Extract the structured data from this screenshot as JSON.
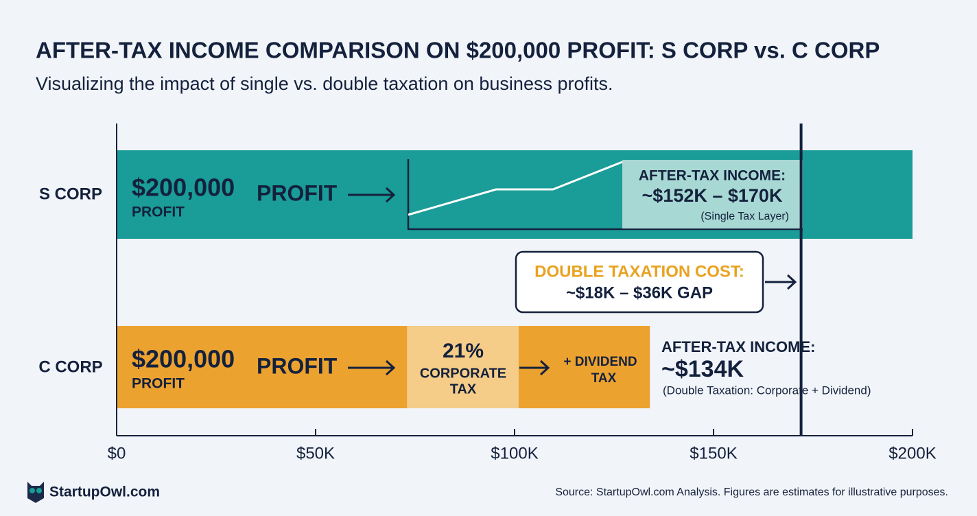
{
  "chart_data": {
    "type": "stacked_bar_horizontal",
    "title": "AFTER-TAX INCOME COMPARISON ON $200,000 PROFIT: S CORP vs. C CORP",
    "subtitle": "Visualizing the impact of single vs. double taxation on business profits.",
    "xlim": [
      0,
      200000
    ],
    "xticks": [
      {
        "value": 0,
        "label": "$0"
      },
      {
        "value": 50000,
        "label": "$50K"
      },
      {
        "value": 100000,
        "label": "$100K"
      },
      {
        "value": 150000,
        "label": "$150K"
      },
      {
        "value": 200000,
        "label": "$200K"
      }
    ],
    "bars": [
      {
        "category": "S CORP",
        "segments": [
          {
            "value": 200000,
            "color": "#1a9c98"
          }
        ],
        "labels": {
          "amount": "$200,000",
          "amount_sub": "PROFIT",
          "profit": "PROFIT"
        },
        "annotation": {
          "heading": "AFTER-TAX INCOME:",
          "value": "~$152K – $170K",
          "note": "(Single Tax Layer)"
        }
      },
      {
        "category": "C CORP",
        "segments": [
          {
            "value": 73000,
            "color": "#eca22f"
          },
          {
            "value": 28000,
            "color": "#f5cd88"
          },
          {
            "value": 33000,
            "color": "#eca22f"
          }
        ],
        "labels": {
          "amount": "$200,000",
          "amount_sub": "PROFIT",
          "profit": "PROFIT",
          "corporate_rate": "21%",
          "corporate_line1": "CORPORATE",
          "corporate_line2": "TAX",
          "dividend_line1": "+ DIVIDEND",
          "dividend_line2": "TAX"
        },
        "annotation": {
          "heading": "AFTER-TAX INCOME:",
          "value": "~$134K",
          "note": "(Double Taxation: Corporate + Dividend)"
        }
      }
    ],
    "reference_line": {
      "value": 172000,
      "color": "#14213d"
    },
    "gap_annotation": {
      "heading": "DOUBLE TAXATION COST:",
      "value": "~$18K – $36K GAP"
    },
    "brand": "StartupOwl.com",
    "source": "Source: StartupOwl.com Analysis. Figures are estimates for illustrative purposes."
  }
}
